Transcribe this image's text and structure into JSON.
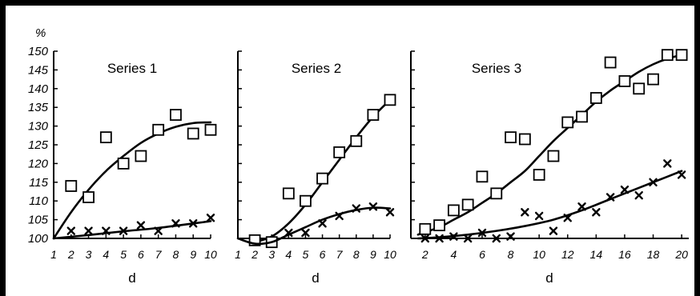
{
  "y_unit": "%",
  "chart_data": [
    {
      "type": "scatter",
      "title": "Series 1",
      "xlabel": "d",
      "ylabel": "%",
      "x_ticks": [
        "1",
        "2",
        "3",
        "4",
        "5",
        "6",
        "7",
        "8",
        "9",
        "10"
      ],
      "y_ticks": [
        "100",
        "105",
        "110",
        "115",
        "120",
        "125",
        "130",
        "135",
        "140",
        "145",
        "150"
      ],
      "xlim": [
        1,
        10
      ],
      "ylim": [
        100,
        150
      ],
      "series": [
        {
          "marker": "square",
          "x": [
            2,
            3,
            4,
            5,
            6,
            7,
            8,
            9,
            10
          ],
          "y": [
            114,
            111,
            127,
            120,
            122,
            129,
            133,
            128,
            129
          ],
          "fit": [
            [
              1,
              100
            ],
            [
              2,
              107
            ],
            [
              3,
              113
            ],
            [
              4,
              118
            ],
            [
              5,
              122
            ],
            [
              6,
              125.5
            ],
            [
              7,
              128
            ],
            [
              8,
              129.8
            ],
            [
              9,
              130.8
            ],
            [
              10,
              131
            ]
          ]
        },
        {
          "marker": "cross",
          "x": [
            2,
            3,
            4,
            5,
            6,
            7,
            8,
            9,
            10
          ],
          "y": [
            102,
            102,
            102,
            102,
            103.5,
            102,
            104,
            104,
            105.5
          ],
          "fit": [
            [
              1,
              100
            ],
            [
              3,
              100.9
            ],
            [
              5,
              101.9
            ],
            [
              7,
              102.8
            ],
            [
              10,
              104.6
            ]
          ]
        }
      ]
    },
    {
      "type": "scatter",
      "title": "Series 2",
      "xlabel": "d",
      "ylabel": "%",
      "x_ticks": [
        "1",
        "2",
        "3",
        "4",
        "5",
        "6",
        "7",
        "8",
        "9",
        "10"
      ],
      "xlim": [
        1,
        10
      ],
      "ylim": [
        100,
        150
      ],
      "series": [
        {
          "marker": "square",
          "x": [
            2,
            3,
            4,
            5,
            6,
            7,
            8,
            9,
            10
          ],
          "y": [
            99.5,
            99,
            112,
            110,
            116,
            123,
            126,
            133,
            137
          ],
          "fit": [
            [
              2,
              99
            ],
            [
              3,
              100.5
            ],
            [
              4,
              104
            ],
            [
              5,
              109
            ],
            [
              6,
              115
            ],
            [
              7,
              121
            ],
            [
              8,
              127
            ],
            [
              9,
              132.5
            ],
            [
              10,
              137
            ]
          ]
        },
        {
          "marker": "cross",
          "x": [
            4,
            5,
            6,
            7,
            8,
            9,
            10
          ],
          "y": [
            101.5,
            101.5,
            104,
            106,
            108,
            108.5,
            107
          ],
          "fit": [
            [
              1,
              100
            ],
            [
              2,
              98.6
            ],
            [
              3,
              99
            ],
            [
              4,
              101
            ],
            [
              5,
              103
            ],
            [
              6,
              105
            ],
            [
              7,
              106.5
            ],
            [
              8,
              107.6
            ],
            [
              9,
              108.2
            ],
            [
              10,
              108
            ]
          ]
        }
      ]
    },
    {
      "type": "scatter",
      "title": "Series 3",
      "xlabel": "d",
      "ylabel": "%",
      "x_ticks": [
        "2",
        "4",
        "6",
        "8",
        "10",
        "12",
        "14",
        "16",
        "18",
        "20"
      ],
      "xlim": [
        1,
        20.5
      ],
      "ylim": [
        100,
        150
      ],
      "series": [
        {
          "marker": "square",
          "x": [
            2,
            3,
            4,
            5,
            6,
            7,
            8,
            9,
            10,
            11,
            12,
            13,
            14,
            15,
            16,
            17,
            18,
            19,
            20
          ],
          "y": [
            102.5,
            103.5,
            107.5,
            109,
            116.5,
            112,
            127,
            126.5,
            117,
            122,
            131,
            132.5,
            137.5,
            147,
            142,
            140,
            142.5,
            149,
            149
          ],
          "fit": [
            [
              1.5,
              101
            ],
            [
              3,
              103
            ],
            [
              4,
              105
            ],
            [
              5,
              107
            ],
            [
              6,
              109.5
            ],
            [
              7,
              112
            ],
            [
              8,
              115
            ],
            [
              9,
              118
            ],
            [
              10,
              122
            ],
            [
              11,
              126
            ],
            [
              12,
              129.5
            ],
            [
              13,
              133
            ],
            [
              14,
              136.5
            ],
            [
              15,
              139.5
            ],
            [
              16,
              142
            ],
            [
              17,
              144.5
            ],
            [
              18,
              146.5
            ],
            [
              19,
              148
            ],
            [
              20,
              149
            ]
          ]
        },
        {
          "marker": "cross",
          "x": [
            2,
            3,
            4,
            5,
            6,
            7,
            8,
            9,
            10,
            11,
            12,
            13,
            14,
            15,
            16,
            17,
            18,
            19,
            20
          ],
          "y": [
            100,
            100,
            100.5,
            100,
            101.5,
            100,
            100.5,
            107,
            106,
            102,
            105.5,
            108.5,
            107,
            111,
            113,
            111.5,
            115,
            120,
            117
          ],
          "fit": [
            [
              1.5,
              100
            ],
            [
              3,
              100.3
            ],
            [
              5,
              101
            ],
            [
              7,
              102
            ],
            [
              9,
              103.3
            ],
            [
              11,
              105
            ],
            [
              13,
              107.5
            ],
            [
              15,
              110.5
            ],
            [
              17,
              113.5
            ],
            [
              19,
              116.5
            ],
            [
              20,
              118
            ]
          ]
        }
      ]
    }
  ]
}
